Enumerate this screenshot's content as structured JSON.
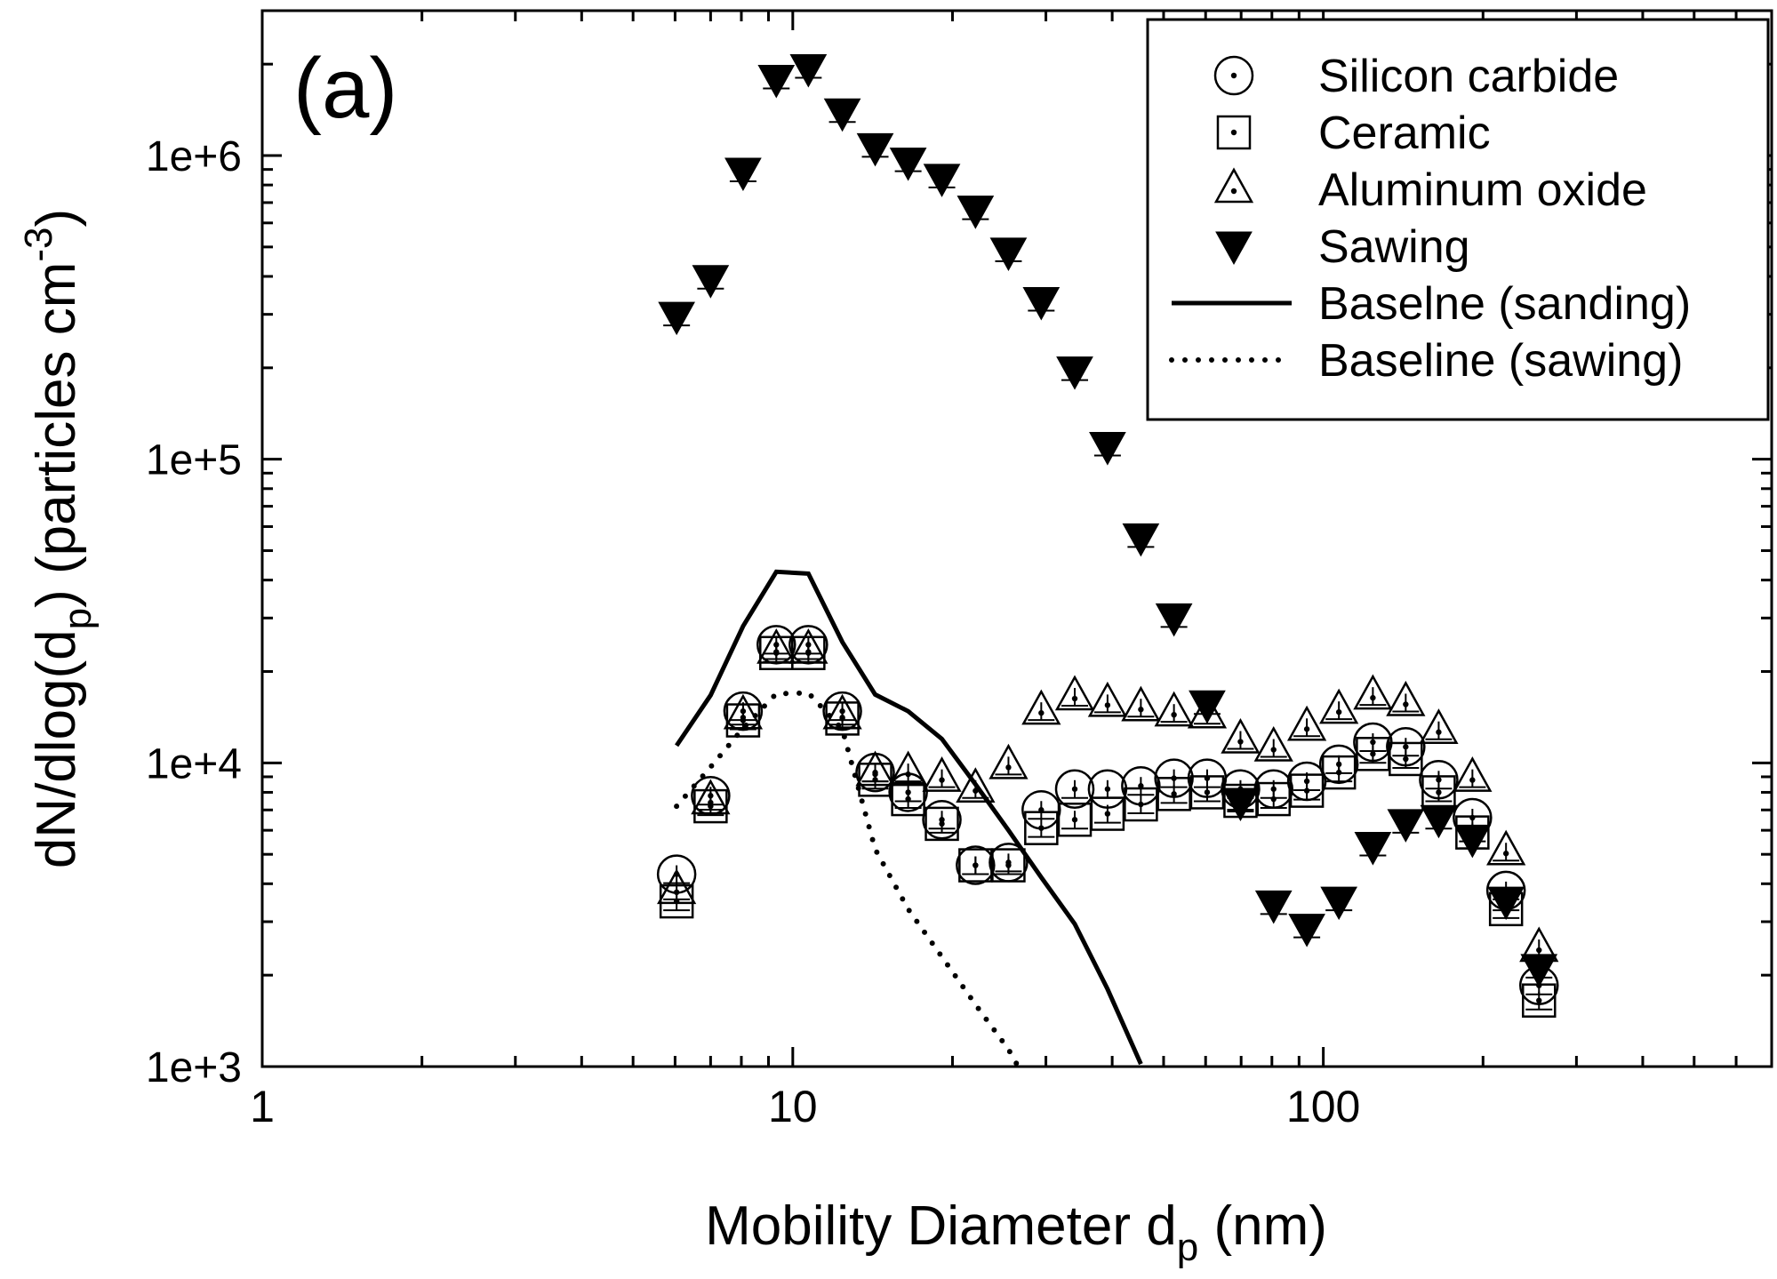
{
  "chart_data": {
    "type": "scatter",
    "panel_label": "(a)",
    "xlabel": {
      "main": "Mobility Diameter d",
      "sub": "p",
      "suffix": " (nm)"
    },
    "ylabel": {
      "main": "dN/dlog(d",
      "sub": "p",
      "mid": ") (particles cm",
      "sup": "-3",
      "end": ")"
    },
    "x_scale": "log",
    "y_scale": "log",
    "xlim": [
      1,
      700
    ],
    "ylim": [
      1000,
      3000000
    ],
    "x_ticks": [
      {
        "value": 1,
        "label": "1"
      },
      {
        "value": 10,
        "label": "10"
      },
      {
        "value": 100,
        "label": "100"
      }
    ],
    "y_ticks": [
      {
        "value": 1000,
        "label": "1e+3"
      },
      {
        "value": 10000,
        "label": "1e+4"
      },
      {
        "value": 100000,
        "label": "1e+5"
      },
      {
        "value": 1000000,
        "label": "1e+6"
      }
    ],
    "grid": false,
    "legend_position": "top-right",
    "series": [
      {
        "name": "Silicon carbide",
        "marker": "circle-dot",
        "x": [
          6.04,
          7.0,
          8.06,
          9.31,
          10.7,
          12.4,
          14.3,
          16.5,
          19.1,
          22.1,
          25.5,
          29.4,
          34.0,
          39.2,
          45.3,
          52.3,
          60.4,
          69.8,
          80.6,
          93.1,
          107,
          124,
          143,
          165,
          191,
          221,
          255
        ],
        "y": [
          4300,
          7800,
          14800,
          24500,
          24500,
          14800,
          9300,
          8000,
          6500,
          4600,
          4700,
          7000,
          8200,
          8200,
          8400,
          8900,
          8900,
          8200,
          8200,
          8700,
          9900,
          11700,
          11300,
          8800,
          6600,
          3800,
          1850
        ]
      },
      {
        "name": "Ceramic",
        "marker": "square-dot",
        "x": [
          6.04,
          7.0,
          8.06,
          9.31,
          10.7,
          12.4,
          14.3,
          16.5,
          19.1,
          22.1,
          25.5,
          29.4,
          34.0,
          39.2,
          45.3,
          52.3,
          60.4,
          69.8,
          80.6,
          93.1,
          107,
          124,
          143,
          165,
          191,
          221,
          255
        ],
        "y": [
          3500,
          7200,
          13800,
          23000,
          23000,
          14000,
          8800,
          7600,
          6300,
          4600,
          4600,
          6100,
          6500,
          6800,
          7300,
          7900,
          8000,
          7500,
          7600,
          8100,
          9300,
          10700,
          10300,
          8000,
          5900,
          3300,
          1650
        ]
      },
      {
        "name": "Aluminum oxide",
        "marker": "triangle-dot",
        "x": [
          6.04,
          7.0,
          8.06,
          9.31,
          10.7,
          12.4,
          14.3,
          16.5,
          19.1,
          22.1,
          25.5,
          29.4,
          34.0,
          39.2,
          45.3,
          52.3,
          60.4,
          69.8,
          80.6,
          93.1,
          107,
          124,
          143,
          165,
          191,
          221,
          255
        ],
        "y": [
          3800,
          7500,
          14300,
          23500,
          23500,
          14300,
          9300,
          9300,
          8900,
          8200,
          9800,
          14800,
          16500,
          15700,
          15200,
          14600,
          14400,
          11900,
          11200,
          13100,
          14900,
          16600,
          15800,
          12800,
          8900,
          5100,
          2450
        ]
      },
      {
        "name": "Sawing",
        "marker": "triangle-down-filled",
        "x": [
          6.04,
          7.0,
          8.06,
          9.31,
          10.7,
          12.4,
          14.3,
          16.5,
          19.1,
          22.1,
          25.5,
          29.4,
          34.0,
          39.2,
          45.3,
          52.3,
          60.4,
          69.8,
          80.6,
          93.1,
          107,
          124,
          143,
          165,
          191,
          221,
          255
        ],
        "y": [
          295000,
          390000,
          880000,
          1780000,
          1930000,
          1380000,
          1060000,
          950000,
          840000,
          660000,
          480000,
          330000,
          195000,
          110000,
          55000,
          30000,
          15500,
          7400,
          3400,
          2850,
          3500,
          5300,
          6300,
          6500,
          5600,
          3500,
          2100
        ]
      },
      {
        "name": "Baselne (sanding)",
        "style": "solid",
        "x": [
          6.04,
          7.0,
          8.06,
          9.31,
          10.7,
          12.4,
          14.3,
          16.5,
          19.1,
          22.1,
          25.5,
          29.4,
          34.0,
          39.2,
          45.3
        ],
        "y": [
          11400,
          16700,
          28200,
          42600,
          42000,
          25000,
          16800,
          14800,
          12000,
          8500,
          6000,
          4200,
          2950,
          1800,
          1020
        ]
      },
      {
        "name": "Baseline (sawing)",
        "style": "dotted",
        "x": [
          6.04,
          7.0,
          8.06,
          9.31,
          10.7,
          12.4,
          14.3,
          16.5,
          19.1,
          22.1,
          25.5,
          26.6
        ],
        "y": [
          7200,
          9700,
          13000,
          16900,
          17000,
          12900,
          5200,
          3300,
          2300,
          1600,
          1140,
          1000
        ]
      }
    ]
  }
}
